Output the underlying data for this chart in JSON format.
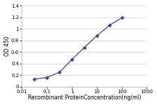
{
  "x": [
    0.032,
    0.1,
    0.32,
    1.0,
    3.2,
    10.0,
    32.0,
    100.0
  ],
  "y": [
    0.13,
    0.16,
    0.25,
    0.47,
    0.68,
    0.88,
    1.06,
    1.19
  ],
  "line_color": "#3344aa",
  "marker": "D",
  "marker_color": "#3344aa",
  "marker_size": 2.5,
  "xlabel": "Recombinant ProteinConcentration(ng/ml)",
  "ylabel": "OD 450",
  "xlim": [
    0.01,
    1000
  ],
  "ylim": [
    0,
    1.4
  ],
  "yticks": [
    0,
    0.2,
    0.4,
    0.6,
    0.8,
    1.0,
    1.2,
    1.4
  ],
  "ytick_labels": [
    "0",
    "0.2",
    "0.4",
    "0.6",
    "0.8",
    "1",
    "1.2",
    "1.4"
  ],
  "xticks": [
    0.01,
    0.1,
    1,
    10,
    100,
    1000
  ],
  "xtick_labels": [
    "0.01",
    "0.1",
    "1",
    "10",
    "100",
    "1000"
  ],
  "grid_color": "#cccccc",
  "plot_bg_color": "#ffffff",
  "fig_bg_color": "#ffffff",
  "line_width": 0.9,
  "axis_fontsize": 5.5,
  "tick_fontsize": 5.0
}
